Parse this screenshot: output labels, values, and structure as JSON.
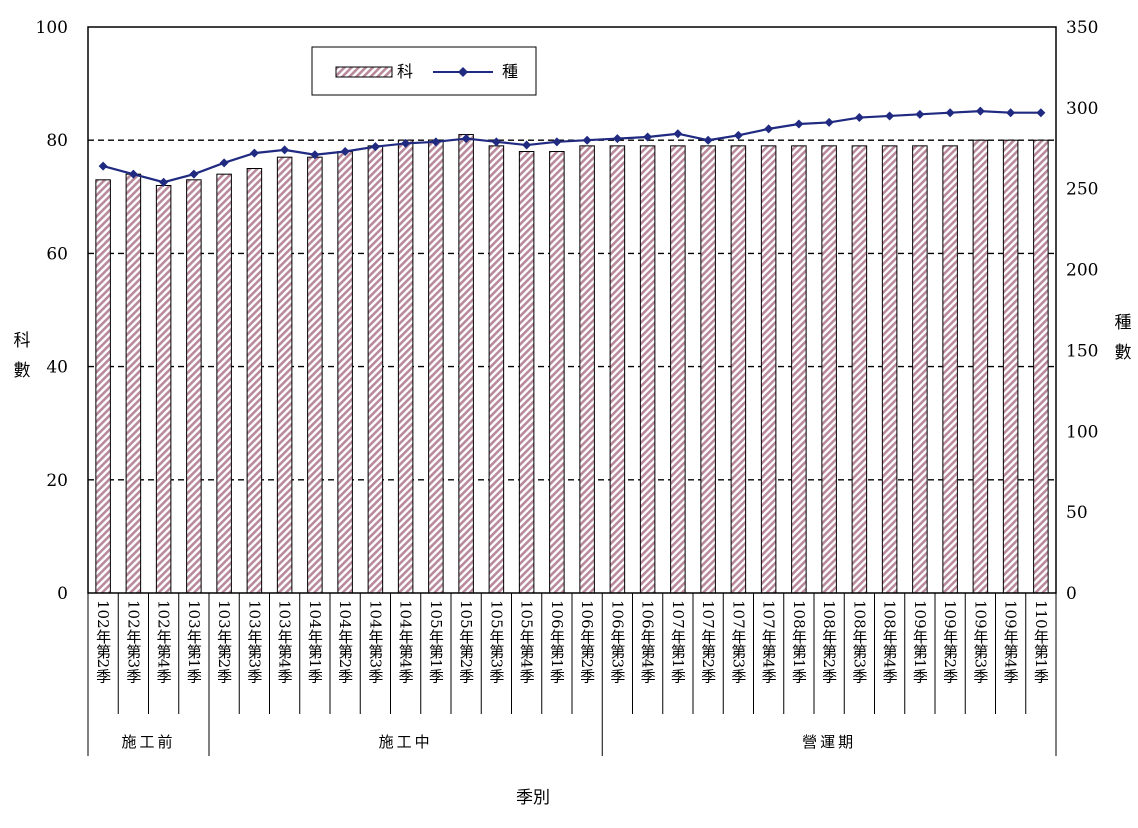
{
  "chart_data": {
    "type": "bar",
    "categories": [
      "102年第2季",
      "102年第3季",
      "102年第4季",
      "103年第1季",
      "103年第2季",
      "103年第3季",
      "103年第4季",
      "104年第1季",
      "104年第2季",
      "104年第3季",
      "104年第4季",
      "105年第1季",
      "105年第2季",
      "105年第3季",
      "105年第4季",
      "106年第1季",
      "106年第2季",
      "106年第3季",
      "106年第4季",
      "107年第1季",
      "107年第2季",
      "107年第3季",
      "107年第4季",
      "108年第1季",
      "108年第2季",
      "108年第3季",
      "108年第4季",
      "109年第1季",
      "109年第2季",
      "109年第3季",
      "109年第4季",
      "110年第1季"
    ],
    "series": [
      {
        "name": "科",
        "type": "bar",
        "axis": "left",
        "color": "#c9a3b4",
        "values": [
          73,
          74,
          72,
          73,
          74,
          75,
          77,
          77,
          78,
          79,
          80,
          80,
          81,
          79,
          78,
          78,
          79,
          79,
          79,
          79,
          79,
          79,
          79,
          79,
          79,
          79,
          79,
          79,
          79,
          80,
          80,
          80
        ]
      },
      {
        "name": "種",
        "type": "line",
        "axis": "right",
        "color": "#1f2a80",
        "values": [
          264,
          259,
          254,
          259,
          266,
          272,
          274,
          271,
          273,
          276,
          278,
          279,
          281,
          279,
          277,
          279,
          280,
          281,
          282,
          284,
          280,
          283,
          287,
          290,
          291,
          294,
          295,
          296,
          297,
          298,
          297,
          297
        ]
      }
    ],
    "groups": [
      {
        "label": "施工前",
        "start": 0,
        "end": 3
      },
      {
        "label": "施工中",
        "start": 4,
        "end": 16
      },
      {
        "label": "營運期",
        "start": 17,
        "end": 31
      }
    ],
    "xlabel": "季別",
    "ylabel_left": "科數",
    "ylabel_right": "種數",
    "ylim_left": [
      0,
      100
    ],
    "ylim_right": [
      0,
      350
    ],
    "yticks_left": [
      0,
      20,
      40,
      60,
      80,
      100
    ],
    "yticks_right": [
      0,
      50,
      100,
      150,
      200,
      250,
      300,
      350
    ],
    "grid": "dashed horizontal",
    "legend_position": "top-left"
  }
}
